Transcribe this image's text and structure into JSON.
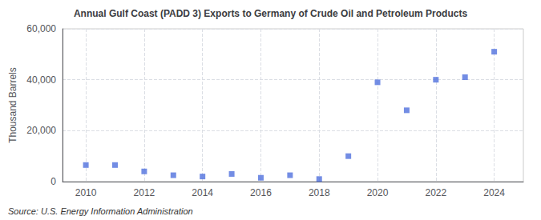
{
  "chart_data": {
    "type": "scatter",
    "title": "Annual Gulf Coast (PADD 3) Exports to Germany of Crude Oil and Petroleum Products",
    "ylabel": "Thousand Barrels",
    "annotations": [
      "Source: U.S. Energy Information Administration"
    ],
    "x": [
      2010,
      2011,
      2012,
      2013,
      2014,
      2015,
      2016,
      2017,
      2018,
      2019,
      2020,
      2021,
      2022,
      2023,
      2024
    ],
    "values": [
      6500,
      6500,
      4000,
      2500,
      2000,
      3000,
      1500,
      2500,
      1000,
      10000,
      39000,
      28000,
      40000,
      41000,
      51000
    ],
    "xlim": [
      2009.2,
      2025.0
    ],
    "xticks": [
      2010,
      2012,
      2014,
      2016,
      2018,
      2020,
      2022,
      2024
    ],
    "ylim": [
      0,
      60000
    ],
    "yticks": [
      0,
      {
        "value": 20000,
        "label": "20,000"
      },
      {
        "value": 40000,
        "label": "40,000"
      },
      {
        "value": 60000,
        "label": "60,000"
      }
    ],
    "marker": "square",
    "grid": true
  }
}
